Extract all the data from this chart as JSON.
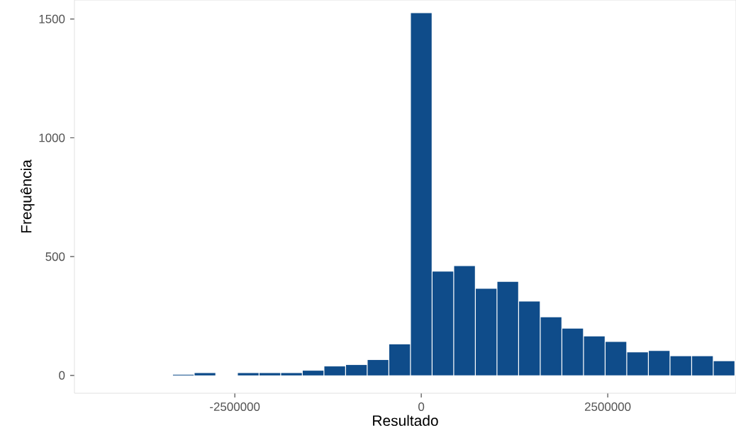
{
  "chart_data": {
    "type": "histogram",
    "xlabel": "Resultado",
    "ylabel": "Frequência",
    "color": "#0f4c8a",
    "bins": [
      -4205000,
      -3915000,
      -3625000,
      -3335000,
      -3045000,
      -2755000,
      -2465000,
      -2175000,
      -1885000,
      -1595000,
      -1305000,
      -1015000,
      -725000,
      -435000,
      -145000,
      145000,
      435000,
      725000,
      1015000,
      1305000,
      1595000,
      1885000,
      2175000,
      2465000,
      2755000,
      3045000,
      3335000,
      3625000,
      3915000,
      4205000
    ],
    "values": [
      0,
      0,
      0,
      3,
      10,
      0,
      10,
      10,
      10,
      20,
      38,
      44,
      65,
      131,
      1525,
      437,
      460,
      365,
      394,
      311,
      245,
      197,
      164,
      141,
      97,
      103,
      81,
      81,
      60
    ],
    "xlim": [
      -4650000,
      4220000
    ],
    "ylim": [
      -75,
      1580
    ],
    "xticks": [
      -2500000,
      0,
      2500000
    ],
    "yticks": [
      0,
      500,
      1000,
      1500
    ]
  }
}
